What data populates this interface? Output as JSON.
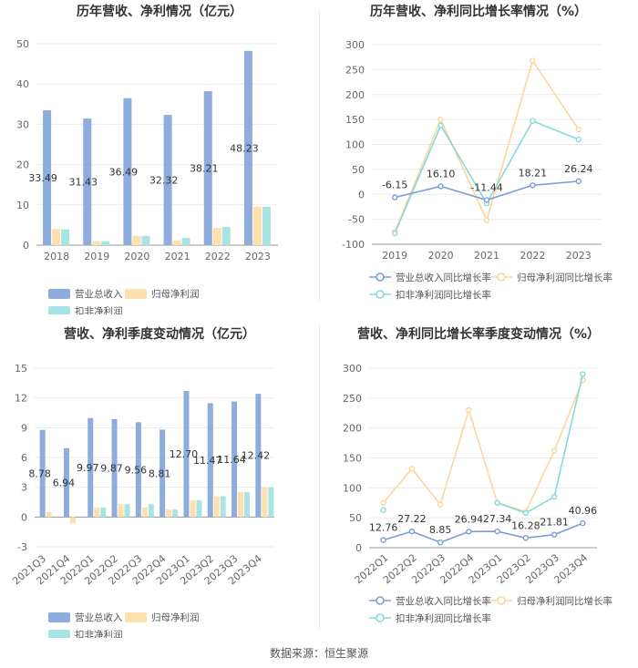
{
  "footer": "数据来源：恒生聚源",
  "colors": {
    "revenue": "#8eacdc",
    "net_profit": "#fde0ad",
    "deducted": "#a9e4e4",
    "revenue_line": "#7b9fd4",
    "net_line": "#fcd79a",
    "deducted_line": "#86dada"
  },
  "chart_data": [
    {
      "type": "bar",
      "title": "历年营收、净利情况（亿元）",
      "categories": [
        "2018",
        "2019",
        "2020",
        "2021",
        "2022",
        "2023"
      ],
      "ylim": [
        0,
        50
      ],
      "yticks": [
        0,
        10,
        20,
        30,
        40,
        50
      ],
      "series": [
        {
          "name": "营业总收入",
          "values": [
            33.49,
            31.43,
            36.49,
            32.32,
            38.21,
            48.23
          ]
        },
        {
          "name": "归母净利润",
          "values": [
            4.0,
            1.0,
            2.3,
            1.2,
            4.3,
            9.5
          ]
        },
        {
          "name": "扣非净利润",
          "values": [
            3.9,
            1.0,
            2.3,
            1.8,
            4.5,
            9.5
          ]
        }
      ],
      "data_labels": [
        "33.49",
        "31.43",
        "36.49",
        "32.32",
        "38.21",
        "48.23"
      ]
    },
    {
      "type": "line",
      "title": "历年营收、净利同比增长率情况（%）",
      "categories": [
        "2019",
        "2020",
        "2021",
        "2022",
        "2023"
      ],
      "ylim": [
        -100,
        300
      ],
      "yticks": [
        -100,
        -50,
        0,
        50,
        100,
        150,
        200,
        250,
        300
      ],
      "series": [
        {
          "name": "营业总收入同比增长率",
          "values": [
            -6.15,
            16.1,
            -11.44,
            18.21,
            26.24
          ]
        },
        {
          "name": "归母净利润同比增长率",
          "values": [
            -75,
            150,
            -52,
            268,
            130
          ]
        },
        {
          "name": "扣非净利润同比增长率",
          "values": [
            -78,
            138,
            -18,
            147,
            110
          ]
        }
      ],
      "data_labels": [
        "-6.15",
        "16.10",
        "-11.44",
        "18.21",
        "26.24"
      ]
    },
    {
      "type": "bar",
      "title": "营收、净利季度变动情况（亿元）",
      "categories": [
        "2021Q3",
        "2021Q4",
        "2022Q1",
        "2022Q2",
        "2022Q3",
        "2022Q4",
        "2023Q1",
        "2023Q2",
        "2023Q3",
        "2023Q4"
      ],
      "ylim": [
        -3,
        15
      ],
      "yticks": [
        -3,
        0,
        3,
        6,
        9,
        12,
        15
      ],
      "series": [
        {
          "name": "营业总收入",
          "values": [
            8.78,
            6.94,
            9.97,
            9.87,
            9.56,
            8.81,
            12.7,
            11.47,
            11.64,
            12.42
          ]
        },
        {
          "name": "归母净利润",
          "values": [
            0.5,
            -0.6,
            0.95,
            1.3,
            0.95,
            0.75,
            1.7,
            2.1,
            2.5,
            3.0
          ]
        },
        {
          "name": "扣非净利润",
          "values": [
            0.0,
            0.0,
            0.95,
            1.3,
            1.3,
            0.75,
            1.7,
            2.1,
            2.5,
            3.0
          ]
        }
      ],
      "data_labels": [
        "8.78",
        "6.94",
        "9.97",
        "9.87",
        "9.56",
        "8.81",
        "12.70",
        "11.47",
        "11.64",
        "12.42"
      ]
    },
    {
      "type": "line",
      "title": "营收、净利同比增长率季度变动情况（%）",
      "categories": [
        "2022Q1",
        "2022Q2",
        "2022Q3",
        "2022Q4",
        "2023Q1",
        "2023Q2",
        "2023Q3",
        "2023Q4"
      ],
      "ylim": [
        0,
        300
      ],
      "yticks": [
        0,
        50,
        100,
        150,
        200,
        250,
        300
      ],
      "series": [
        {
          "name": "营业总收入同比增长率",
          "values": [
            12.76,
            27.22,
            8.85,
            26.94,
            27.34,
            16.28,
            21.81,
            40.96
          ]
        },
        {
          "name": "归母净利润同比增长率",
          "values": [
            75,
            132,
            72,
            230,
            75,
            60,
            162,
            280
          ]
        },
        {
          "name": "扣非净利润同比增长率",
          "values": [
            63,
            null,
            null,
            null,
            75,
            58,
            85,
            290
          ]
        }
      ],
      "data_labels": [
        "12.76",
        "27.22",
        "8.85",
        "26.94",
        "27.34",
        "16.28",
        "21.81",
        "40.96"
      ]
    }
  ]
}
